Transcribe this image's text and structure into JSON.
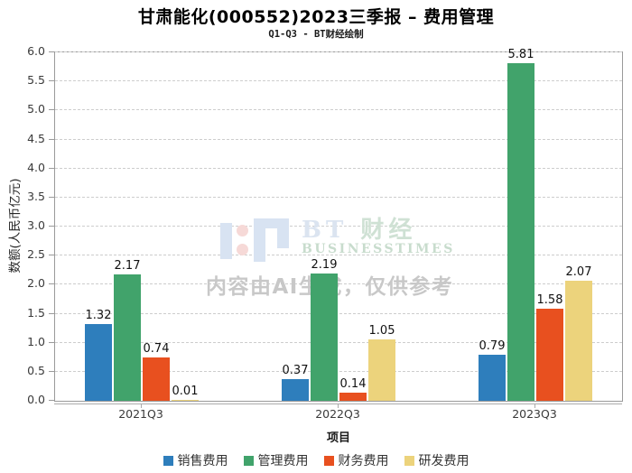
{
  "chart_data": {
    "type": "bar",
    "title": "甘肃能化(000552)2023三季报 – 费用管理",
    "subtitle": "Q1-Q3 - BT财经绘制",
    "categories": [
      "2021Q3",
      "2022Q3",
      "2023Q3"
    ],
    "series": [
      {
        "name": "销售费用",
        "color": "#2e7ebc",
        "values": [
          1.32,
          0.37,
          0.79
        ]
      },
      {
        "name": "管理费用",
        "color": "#41a36b",
        "values": [
          2.17,
          2.19,
          5.81
        ]
      },
      {
        "name": "财务费用",
        "color": "#e8501f",
        "values": [
          0.74,
          0.14,
          1.58
        ]
      },
      {
        "name": "研发费用",
        "color": "#ecd37c",
        "values": [
          0.01,
          1.05,
          2.07
        ]
      }
    ],
    "xlabel": "项目",
    "ylabel": "数额(人民币亿元)",
    "ylim": [
      0,
      6
    ],
    "ytick_step": 0.5,
    "grid": true,
    "legend_position": "bottom",
    "bar_label_decimals": 2
  },
  "watermark": {
    "logo_bt": "BT",
    "logo_cn": "财经",
    "logo_sub": "BUSINESSTIMES",
    "disclaimer": "内容由AI生成，仅供参考"
  }
}
